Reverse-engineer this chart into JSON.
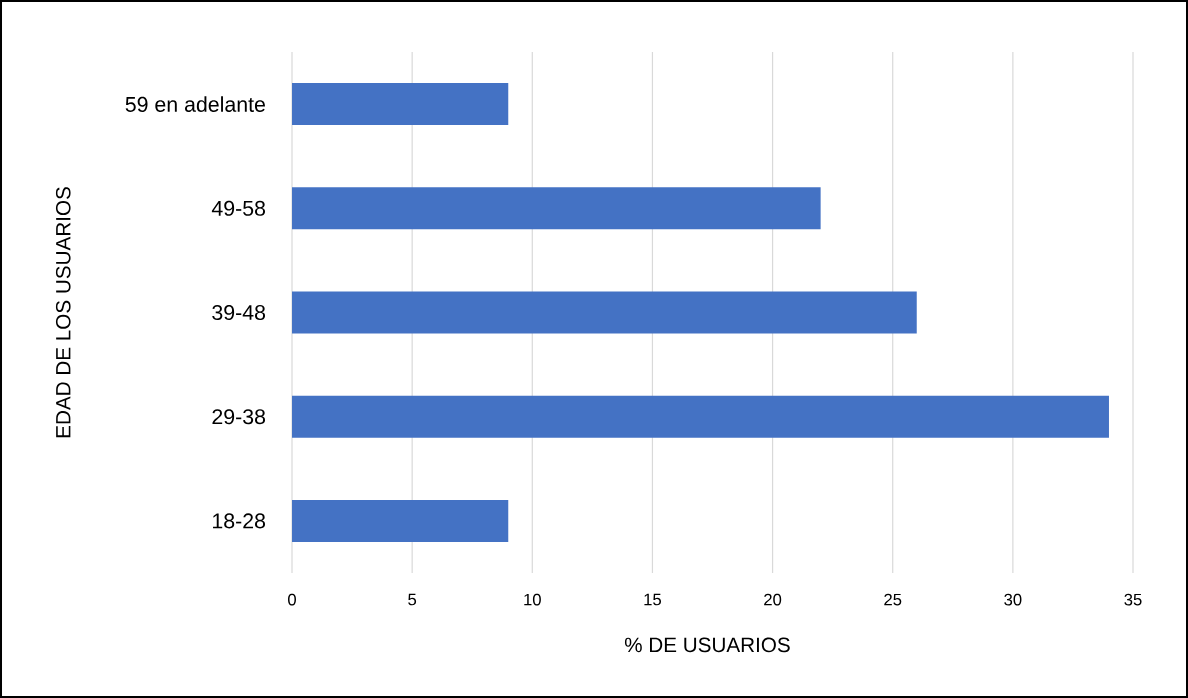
{
  "chart_data": {
    "type": "bar",
    "orientation": "horizontal",
    "categories": [
      "59 en adelante",
      "49-58",
      "39-48",
      "29-38",
      "18-28"
    ],
    "values": [
      9,
      22,
      26,
      34,
      9
    ],
    "color": "#4472c4",
    "xlabel": "% DE USUARIOS",
    "ylabel": "EDAD DE LOS USUARIOS",
    "xlim": [
      0,
      35
    ],
    "xticks": [
      0,
      5,
      10,
      15,
      20,
      25,
      30,
      35
    ],
    "grid": "x"
  }
}
